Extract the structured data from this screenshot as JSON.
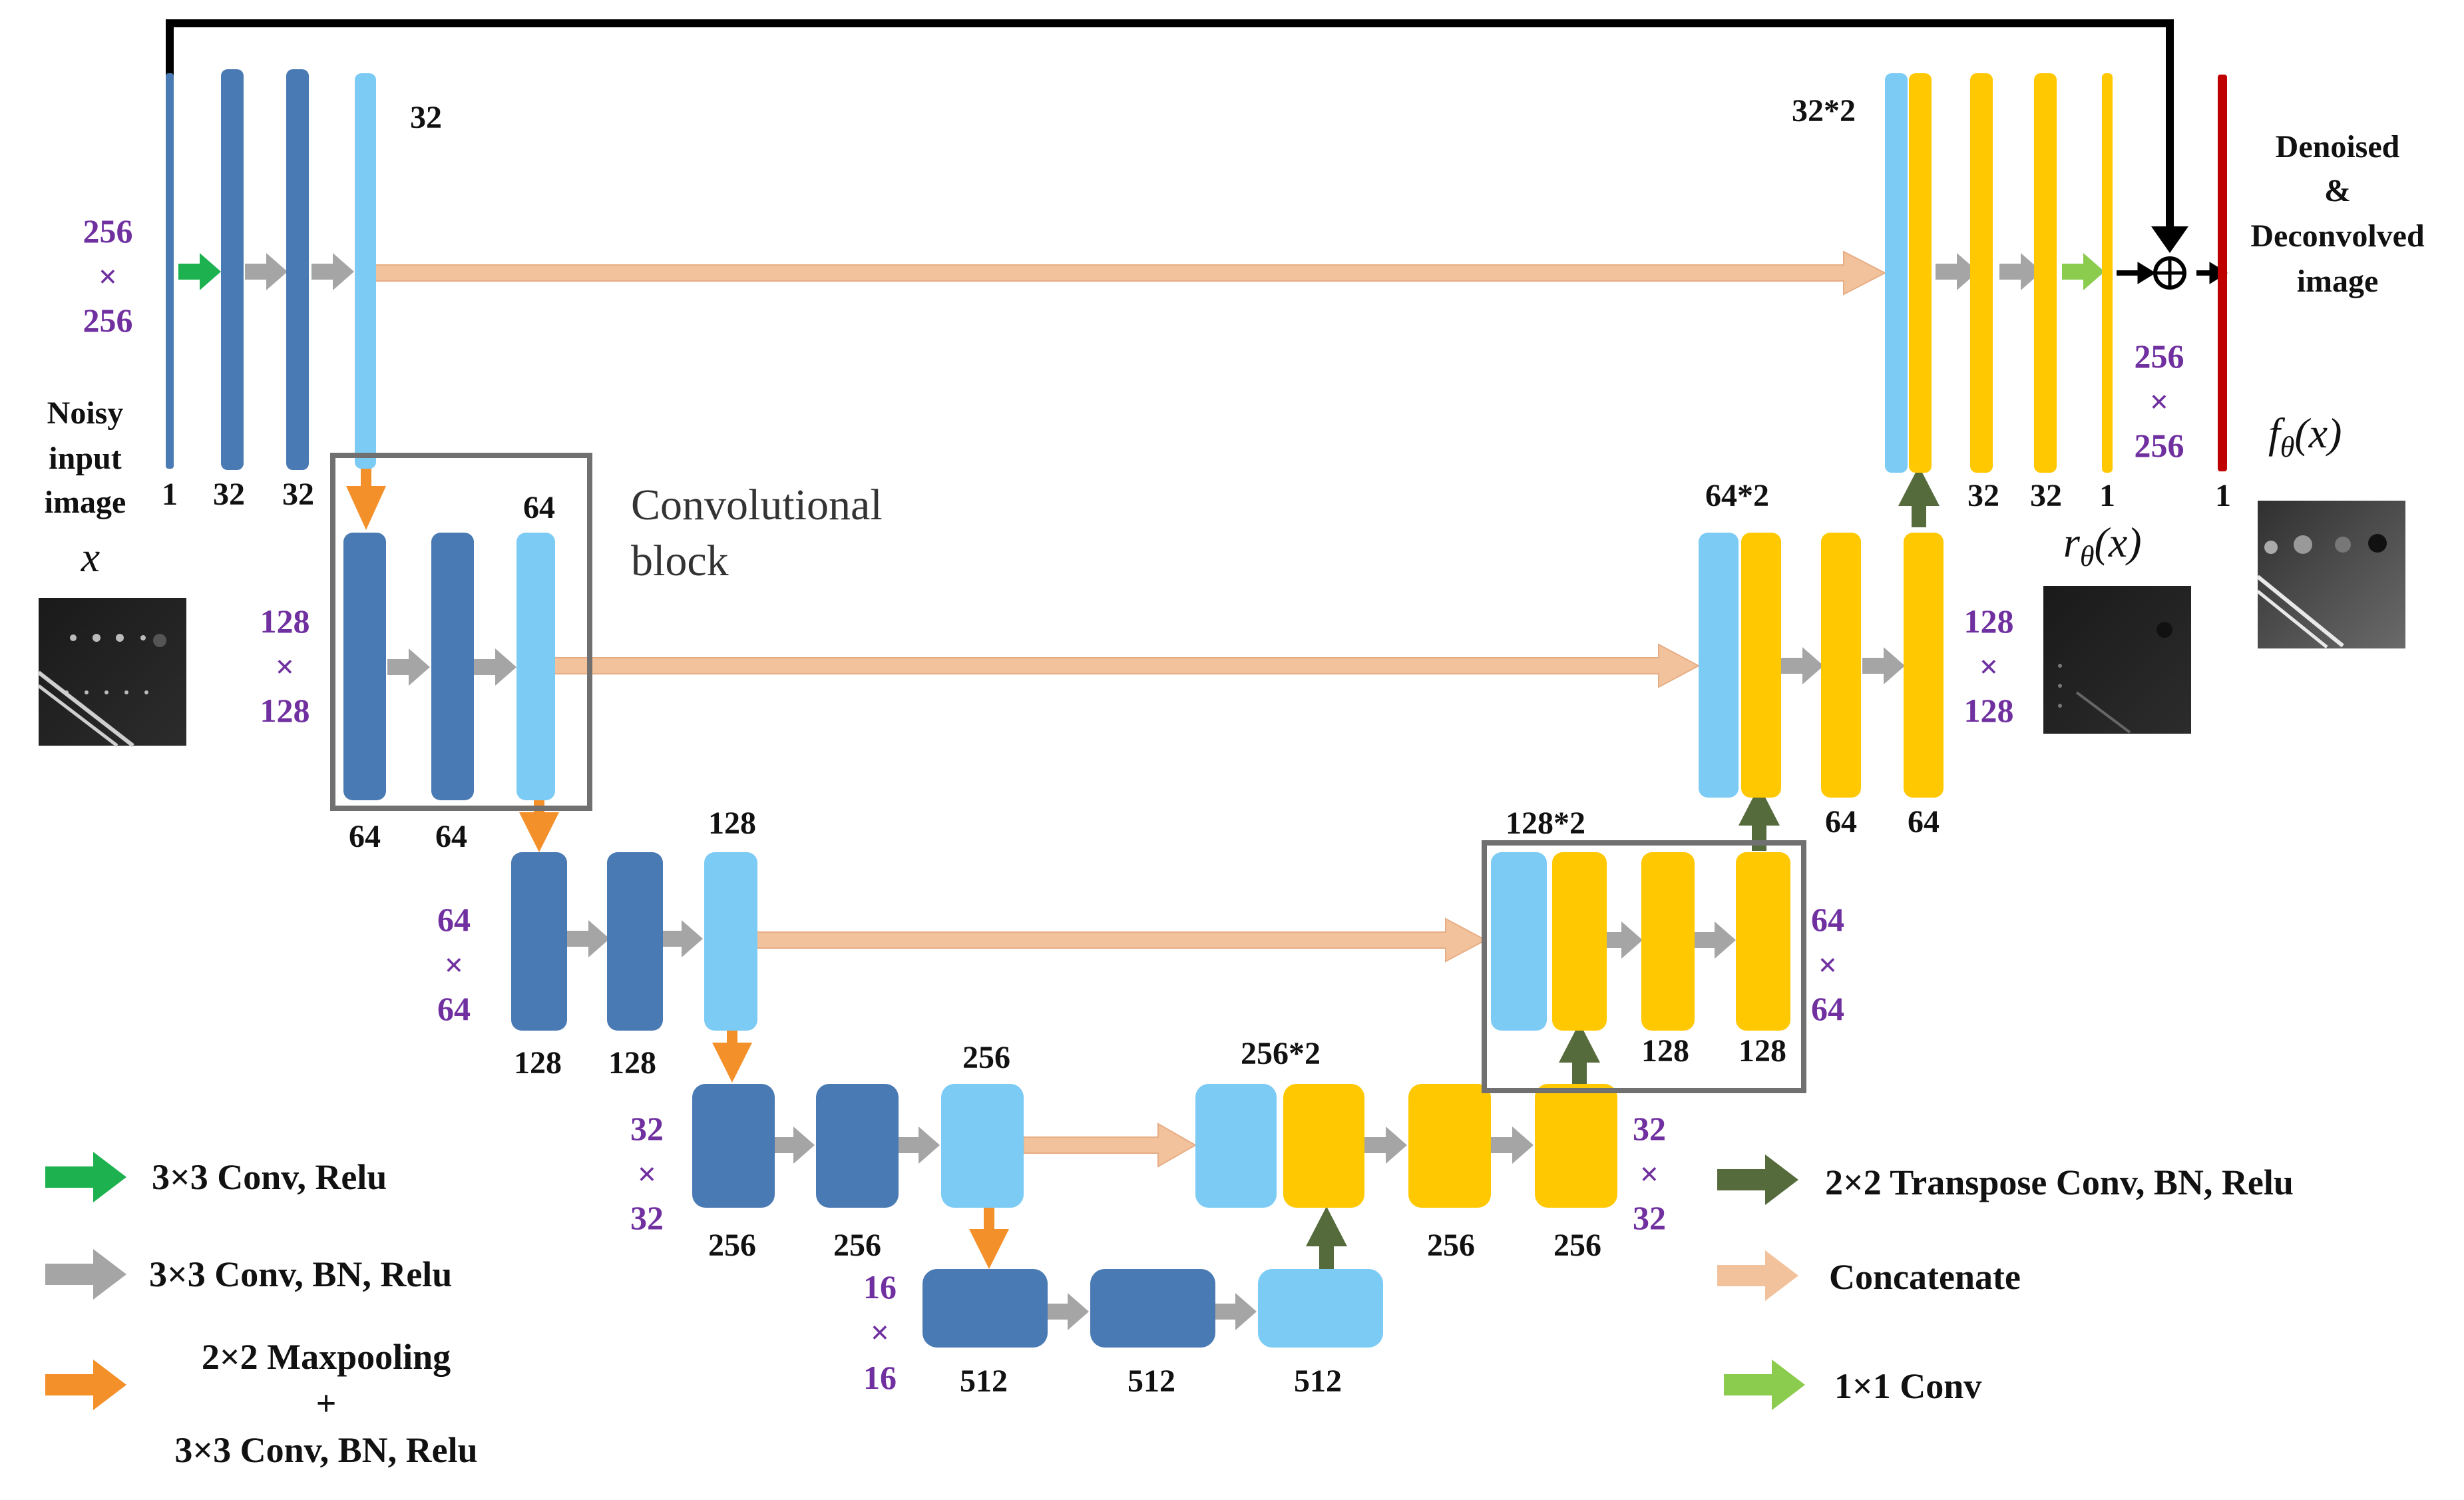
{
  "colors": {
    "enc_dark": "#4a7ab3",
    "skip_light": "#7ccbf5",
    "dec_yellow": "#ffc800",
    "out_red": "#c00000",
    "arrow_green": "#1db150",
    "arrow_gray": "#a5a5a5",
    "arrow_orange": "#f4902a",
    "arrow_olive": "#556b3c",
    "arrow_peach": "#f2c29c",
    "arrow_lime": "#8bcc4e",
    "frame_gray": "#707070"
  },
  "input": {
    "title_lines": [
      "Noisy",
      "input",
      "image"
    ],
    "symbol": "x"
  },
  "output": {
    "title_lines": [
      "Denoised",
      "&",
      "Deconvolved",
      "image"
    ],
    "symbol": "f",
    "symbol_sub": "θ",
    "symbol_arg": "(x)"
  },
  "residual": {
    "symbol": "r",
    "symbol_sub": "θ",
    "symbol_arg": "(x)"
  },
  "plus_symbol": "⊕",
  "conv_block_label": [
    "Convolutional",
    "block"
  ],
  "dims": {
    "l1_in": [
      "256",
      "×",
      "256"
    ],
    "l1_out": [
      "256",
      "×",
      "256"
    ],
    "l2_in": [
      "128",
      "×",
      "128"
    ],
    "l2_out": [
      "128",
      "×",
      "128"
    ],
    "l3_in": [
      "64",
      "×",
      "64"
    ],
    "l3_out": [
      "64",
      "×",
      "64"
    ],
    "l4_in": [
      "32",
      "×",
      "32"
    ],
    "l4_out": [
      "32",
      "×",
      "32"
    ],
    "l5": [
      "16",
      "×",
      "16"
    ]
  },
  "channel_labels": {
    "enc1": [
      "1",
      "32",
      "32",
      "32"
    ],
    "enc2": [
      "64",
      "64",
      "64"
    ],
    "enc3": [
      "128",
      "128",
      "128"
    ],
    "enc4": [
      "256",
      "256",
      "256"
    ],
    "bottleneck": [
      "512",
      "512",
      "512"
    ],
    "dec4": [
      "256*2",
      "256",
      "256"
    ],
    "dec3": [
      "128*2",
      "128",
      "128"
    ],
    "dec2": [
      "64*2",
      "64",
      "64"
    ],
    "dec1": [
      "32*2",
      "32",
      "32",
      "1",
      "1"
    ]
  },
  "legend": {
    "green": "3×3 Conv, Relu",
    "gray": "3×3 Conv, BN,  Relu",
    "orange": [
      "2×2 Maxpooling",
      "+",
      "3×3 Conv, BN,  Relu"
    ],
    "olive": "2×2 Transpose Conv, BN, Relu",
    "peach": "Concatenate",
    "lime": "1×1 Conv"
  }
}
